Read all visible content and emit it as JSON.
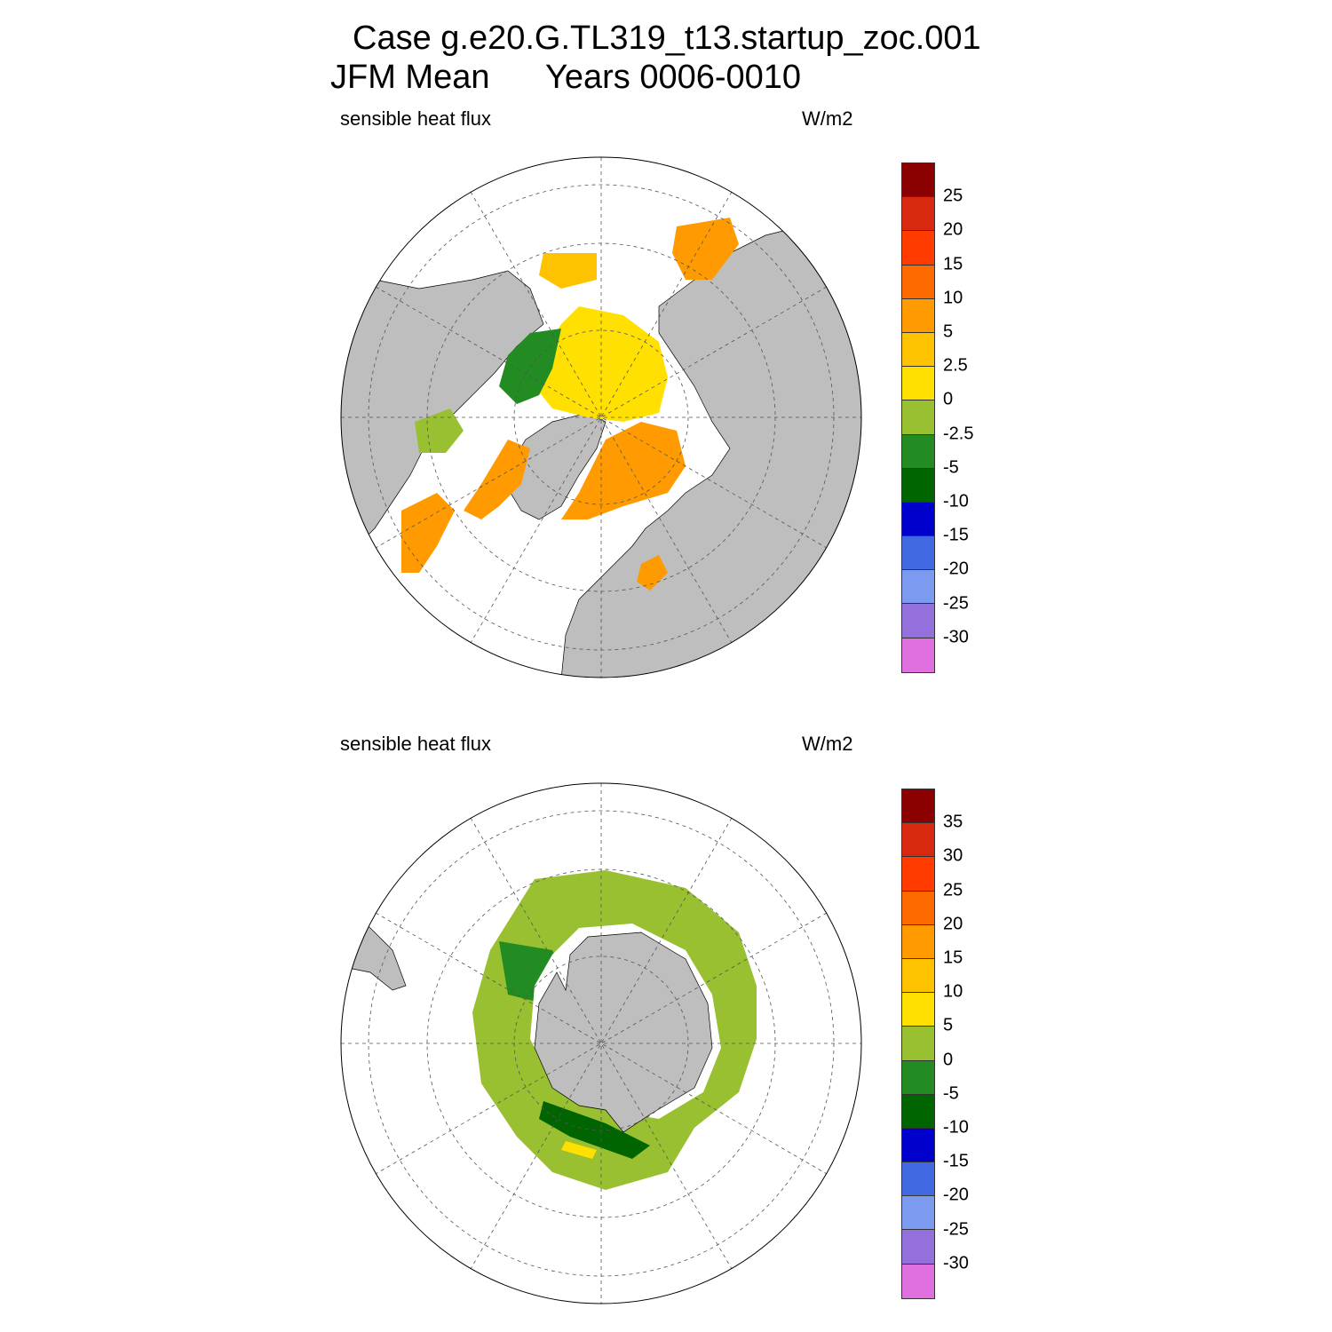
{
  "header": {
    "line1": "Case g.e20.G.TL319_t13.startup_zoc.001",
    "line2_left": "JFM Mean",
    "line2_right": "Years 0006-0010"
  },
  "panels": [
    {
      "variable": "sensible heat flux",
      "units": "W/m2",
      "hemisphere": "north",
      "legend_levels": [
        "25",
        "20",
        "15",
        "10",
        "5",
        "2.5",
        "0",
        "-2.5",
        "-5",
        "-10",
        "-15",
        "-20",
        "-25",
        "-30"
      ],
      "legend_colors": [
        "#8b0000",
        "#d8280f",
        "#ff3b00",
        "#ff6a00",
        "#ff9a00",
        "#ffc200",
        "#ffe000",
        "#98c030",
        "#228b22",
        "#006400",
        "#0000cd",
        "#4169e1",
        "#7b9af0",
        "#9370db",
        "#e070e0"
      ]
    },
    {
      "variable": "sensible heat flux",
      "units": "W/m2",
      "hemisphere": "south",
      "legend_levels": [
        "35",
        "30",
        "25",
        "20",
        "15",
        "10",
        "5",
        "0",
        "-5",
        "-10",
        "-15",
        "-20",
        "-25",
        "-30"
      ],
      "legend_colors": [
        "#8b0000",
        "#d8280f",
        "#ff3b00",
        "#ff6a00",
        "#ff9a00",
        "#ffc200",
        "#ffe000",
        "#98c030",
        "#228b22",
        "#006400",
        "#0000cd",
        "#4169e1",
        "#7b9af0",
        "#9370db",
        "#e070e0"
      ]
    }
  ]
}
